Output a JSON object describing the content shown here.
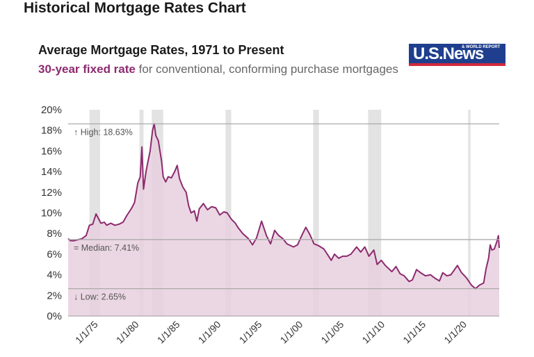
{
  "page_title": "Historical Mortgage Rates Chart",
  "logo": {
    "text": "U.S.News",
    "small": "& WORLD REPORT",
    "colors": {
      "blue": "#1f3f8e",
      "red": "#d1283c"
    }
  },
  "colors": {
    "series": "#8c2a6e",
    "fill": "#e8d0de",
    "recession": "#e3e3e3",
    "refline": "#aaaaaa"
  },
  "chart_data": {
    "type": "area",
    "title": "Average Mortgage Rates, 1971 to Present",
    "subtitle_highlight": "30-year fixed rate",
    "subtitle_rest": " for conventional, conforming purchase mortgages",
    "ylim": [
      0,
      20
    ],
    "xlim": [
      1971.3,
      2023.9
    ],
    "y_ticks": [
      0,
      2,
      4,
      6,
      8,
      10,
      12,
      14,
      16,
      18,
      20
    ],
    "y_tick_labels": [
      "0%",
      "2%",
      "4%",
      "6%",
      "8%",
      "10%",
      "12%",
      "14%",
      "16%",
      "18%",
      "20%"
    ],
    "x_ticks": [
      1975,
      1980,
      1985,
      1990,
      1995,
      2000,
      2005,
      2010,
      2015,
      2020
    ],
    "x_tick_labels": [
      "1/1/75",
      "1/1/80",
      "1/1/85",
      "1/1/90",
      "1/1/95",
      "1/1/00",
      "1/1/05",
      "1/1/10",
      "1/1/15",
      "1/1/20"
    ],
    "reference_lines": [
      {
        "name": "high",
        "value": 18.63,
        "label": "↑ High: 18.63%"
      },
      {
        "name": "median",
        "value": 7.41,
        "label": "= Median: 7.41%"
      },
      {
        "name": "low",
        "value": 2.65,
        "label": "↓ Low: 2.65%"
      }
    ],
    "recessions": [
      [
        1973.9,
        1975.2
      ],
      [
        1980.0,
        1980.5
      ],
      [
        1981.5,
        1982.9
      ],
      [
        1990.5,
        1991.2
      ],
      [
        2001.2,
        2001.9
      ],
      [
        2007.9,
        2009.5
      ],
      [
        2020.1,
        2020.4
      ]
    ],
    "series": [
      {
        "name": "30-year fixed rate",
        "x": [
          1971.3,
          1971.6,
          1972.0,
          1972.5,
          1973.0,
          1973.5,
          1973.9,
          1974.3,
          1974.7,
          1974.9,
          1975.3,
          1975.7,
          1976.0,
          1976.5,
          1977.0,
          1977.5,
          1978.0,
          1978.5,
          1979.0,
          1979.4,
          1979.8,
          1980.1,
          1980.3,
          1980.5,
          1980.8,
          1981.0,
          1981.3,
          1981.6,
          1981.8,
          1982.0,
          1982.3,
          1982.7,
          1982.9,
          1983.2,
          1983.5,
          1983.9,
          1984.3,
          1984.6,
          1984.9,
          1985.3,
          1985.7,
          1986.0,
          1986.3,
          1986.7,
          1987.0,
          1987.3,
          1987.8,
          1988.3,
          1988.8,
          1989.3,
          1989.8,
          1990.3,
          1990.7,
          1991.2,
          1991.7,
          1992.0,
          1992.6,
          1993.3,
          1993.8,
          1994.3,
          1994.9,
          1995.5,
          1996.0,
          1996.5,
          1997.0,
          1997.5,
          1998.0,
          1998.8,
          1999.3,
          1999.8,
          2000.3,
          2000.8,
          2001.3,
          2001.9,
          2002.5,
          2003.0,
          2003.4,
          2003.8,
          2004.3,
          2004.8,
          2005.3,
          2005.8,
          2006.5,
          2007.0,
          2007.5,
          2008.0,
          2008.6,
          2009.0,
          2009.5,
          2010.0,
          2010.8,
          2011.3,
          2011.8,
          2012.3,
          2012.9,
          2013.3,
          2013.8,
          2014.3,
          2014.9,
          2015.5,
          2016.0,
          2016.6,
          2017.0,
          2017.5,
          2018.0,
          2018.8,
          2019.3,
          2019.9,
          2020.5,
          2021.0,
          2021.5,
          2022.0,
          2022.3,
          2022.6,
          2022.8,
          2023.0,
          2023.3,
          2023.6,
          2023.8,
          2023.9
        ],
        "values": [
          7.5,
          7.3,
          7.3,
          7.4,
          7.5,
          7.8,
          8.8,
          8.9,
          9.9,
          9.6,
          9.0,
          9.1,
          8.8,
          9.0,
          8.8,
          8.9,
          9.1,
          9.8,
          10.4,
          11.0,
          12.9,
          13.5,
          16.4,
          12.3,
          14.0,
          14.8,
          16.0,
          18.0,
          18.63,
          17.5,
          17.0,
          15.0,
          13.5,
          13.0,
          13.5,
          13.4,
          14.0,
          14.6,
          13.3,
          12.5,
          12.0,
          10.7,
          10.0,
          10.2,
          9.2,
          10.4,
          10.9,
          10.3,
          10.6,
          10.5,
          9.8,
          10.1,
          10.0,
          9.4,
          9.0,
          8.6,
          8.0,
          7.5,
          6.9,
          7.6,
          9.2,
          7.8,
          7.0,
          8.3,
          7.8,
          7.5,
          7.0,
          6.7,
          6.9,
          7.8,
          8.6,
          7.9,
          7.0,
          6.8,
          6.5,
          5.9,
          5.4,
          6.0,
          5.6,
          5.8,
          5.8,
          6.0,
          6.7,
          6.2,
          6.7,
          5.8,
          6.4,
          5.0,
          5.4,
          4.9,
          4.3,
          4.8,
          4.1,
          3.9,
          3.35,
          3.5,
          4.5,
          4.2,
          3.9,
          4.0,
          3.7,
          3.4,
          4.2,
          3.9,
          4.0,
          4.9,
          4.2,
          3.7,
          3.0,
          2.65,
          3.0,
          3.2,
          4.6,
          5.6,
          6.9,
          6.4,
          6.5,
          7.2,
          7.79,
          6.6
        ]
      }
    ]
  }
}
